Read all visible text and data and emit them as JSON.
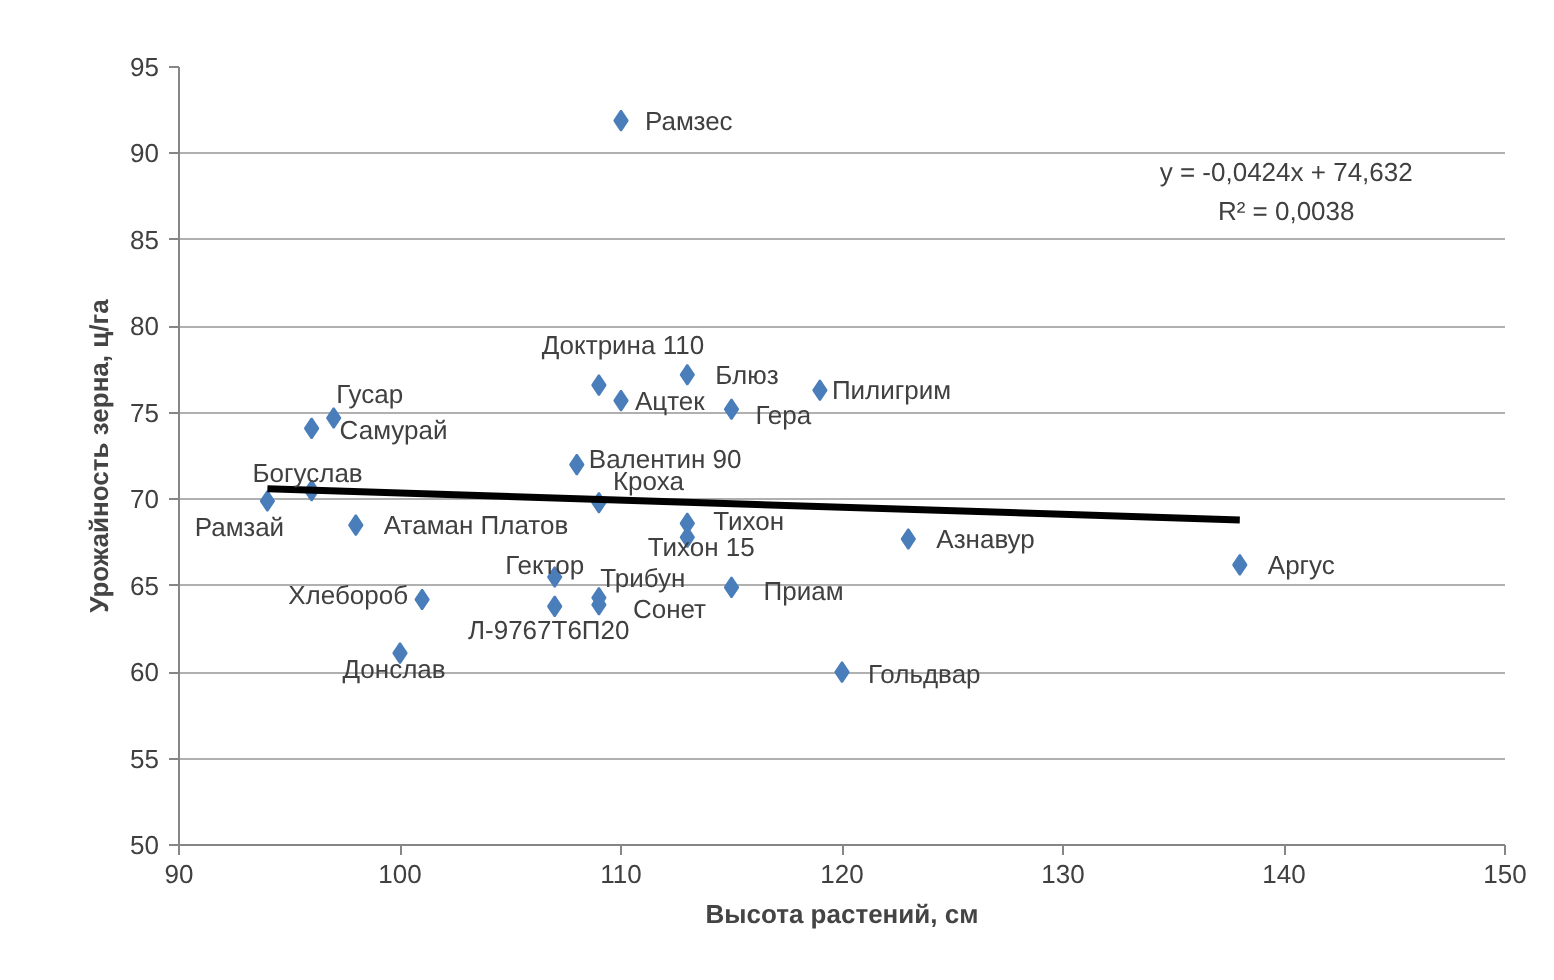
{
  "chart_data": {
    "type": "scatter",
    "xlabel": "Высота растений, см",
    "ylabel": "Урожайность зерна, ц/га",
    "xlim": [
      90,
      150
    ],
    "xticks": [
      90,
      100,
      110,
      120,
      130,
      140,
      150
    ],
    "ylim": [
      50,
      95
    ],
    "yticks": [
      50,
      55,
      60,
      65,
      70,
      75,
      80,
      85,
      90,
      95
    ],
    "grid": "y",
    "series": [
      {
        "marker": "diamond",
        "color": "#4a7ebb",
        "x": [
          110,
          109,
          113,
          110,
          115,
          119,
          97,
          96,
          108,
          96,
          94,
          109,
          98,
          113,
          113,
          107,
          109,
          109,
          107,
          101,
          115,
          100,
          120,
          123,
          138
        ],
        "values": [
          91.9,
          76.6,
          77.2,
          75.7,
          75.2,
          76.3,
          74.7,
          74.1,
          72.0,
          70.5,
          69.9,
          69.8,
          68.5,
          68.6,
          67.8,
          65.5,
          64.3,
          63.9,
          63.8,
          64.2,
          64.9,
          61.1,
          60.0,
          67.7,
          66.2
        ]
      },
      {
        "type": "line",
        "color": "#000000",
        "x": [
          94,
          138
        ],
        "values": [
          70.6,
          68.8
        ]
      }
    ],
    "annotations": [
      "y = -0,0424x + 74,632",
      "R² = 0,0038",
      {
        "text": "Рамзес",
        "x": 110,
        "y": 91.9
      },
      {
        "text": "Доктрина 110",
        "x": 109,
        "y": 76.6
      },
      {
        "text": "Блюз",
        "x": 113,
        "y": 77.2
      },
      {
        "text": "Ацтек",
        "x": 110,
        "y": 75.7
      },
      {
        "text": "Гера",
        "x": 115,
        "y": 75.2
      },
      {
        "text": "Пилигрим",
        "x": 119,
        "y": 76.3
      },
      {
        "text": "Гусар",
        "x": 97,
        "y": 74.7
      },
      {
        "text": "Самурай",
        "x": 96,
        "y": 74.1
      },
      {
        "text": "Валентин 90",
        "x": 108,
        "y": 72.0
      },
      {
        "text": "Богуслав",
        "x": 96,
        "y": 70.5
      },
      {
        "text": "Рамзай",
        "x": 94,
        "y": 69.9
      },
      {
        "text": "Кроха",
        "x": 109,
        "y": 69.8
      },
      {
        "text": "Атаман Платов",
        "x": 98,
        "y": 68.5
      },
      {
        "text": "Тихон",
        "x": 113,
        "y": 68.6
      },
      {
        "text": "Тихон 15",
        "x": 113,
        "y": 67.8
      },
      {
        "text": "Гектор",
        "x": 107,
        "y": 65.5
      },
      {
        "text": "Трибун",
        "x": 109,
        "y": 64.3
      },
      {
        "text": "Сонет",
        "x": 109,
        "y": 63.9
      },
      {
        "text": "Л-9767Т6П20",
        "x": 107,
        "y": 63.8
      },
      {
        "text": "Хлебороб",
        "x": 101,
        "y": 64.2
      },
      {
        "text": "Приам",
        "x": 115,
        "y": 64.9
      },
      {
        "text": "Донслав",
        "x": 100,
        "y": 61.1
      },
      {
        "text": "Гольдвар",
        "x": 120,
        "y": 60.0
      },
      {
        "text": "Азнавур",
        "x": 123,
        "y": 67.7
      },
      {
        "text": "Аргус",
        "x": 138,
        "y": 66.2
      }
    ]
  }
}
